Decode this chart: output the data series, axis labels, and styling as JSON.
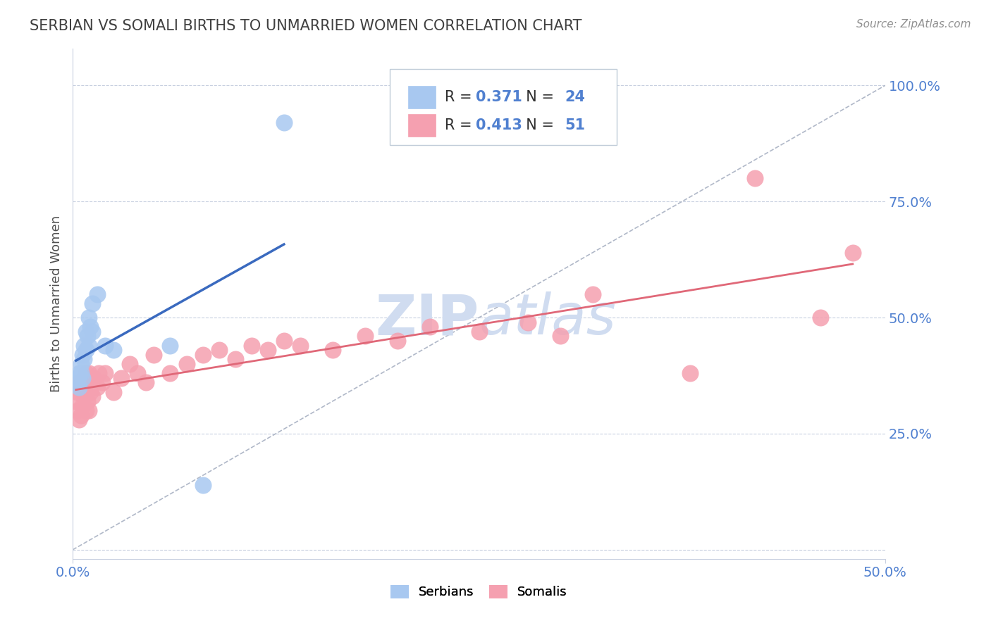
{
  "title": "SERBIAN VS SOMALI BIRTHS TO UNMARRIED WOMEN CORRELATION CHART",
  "source": "Source: ZipAtlas.com",
  "xlim": [
    0.0,
    0.5
  ],
  "ylim": [
    -0.02,
    1.08
  ],
  "ylabel": "Births to Unmarried Women",
  "serbian_color": "#a8c8f0",
  "somali_color": "#f5a0b0",
  "serbian_line_color": "#3a6abf",
  "somali_line_color": "#e06878",
  "ref_line_color": "#b0b8c8",
  "r_serbian": 0.371,
  "n_serbian": 24,
  "r_somali": 0.413,
  "n_somali": 51,
  "background_color": "#ffffff",
  "grid_color": "#c8d0e0",
  "title_color": "#404040",
  "source_color": "#909090",
  "watermark_color": "#d0dcf0",
  "accent_color": "#5080d0",
  "serbian_x": [
    0.002,
    0.003,
    0.004,
    0.004,
    0.005,
    0.005,
    0.006,
    0.006,
    0.007,
    0.007,
    0.008,
    0.008,
    0.009,
    0.01,
    0.01,
    0.011,
    0.012,
    0.012,
    0.015,
    0.02,
    0.025,
    0.06,
    0.08,
    0.13
  ],
  "serbian_y": [
    0.36,
    0.37,
    0.35,
    0.38,
    0.38,
    0.4,
    0.37,
    0.42,
    0.41,
    0.44,
    0.43,
    0.47,
    0.46,
    0.44,
    0.5,
    0.48,
    0.47,
    0.53,
    0.55,
    0.44,
    0.43,
    0.44,
    0.14,
    0.92
  ],
  "somali_x": [
    0.002,
    0.003,
    0.003,
    0.004,
    0.004,
    0.005,
    0.005,
    0.006,
    0.006,
    0.007,
    0.007,
    0.008,
    0.008,
    0.009,
    0.009,
    0.01,
    0.01,
    0.011,
    0.012,
    0.013,
    0.015,
    0.016,
    0.018,
    0.02,
    0.025,
    0.03,
    0.035,
    0.04,
    0.045,
    0.05,
    0.06,
    0.07,
    0.08,
    0.09,
    0.1,
    0.11,
    0.12,
    0.13,
    0.14,
    0.16,
    0.18,
    0.2,
    0.22,
    0.25,
    0.28,
    0.3,
    0.32,
    0.38,
    0.42,
    0.46,
    0.48
  ],
  "somali_y": [
    0.32,
    0.3,
    0.34,
    0.28,
    0.36,
    0.29,
    0.35,
    0.31,
    0.36,
    0.33,
    0.37,
    0.3,
    0.38,
    0.32,
    0.36,
    0.3,
    0.38,
    0.34,
    0.33,
    0.37,
    0.35,
    0.38,
    0.36,
    0.38,
    0.34,
    0.37,
    0.4,
    0.38,
    0.36,
    0.42,
    0.38,
    0.4,
    0.42,
    0.43,
    0.41,
    0.44,
    0.43,
    0.45,
    0.44,
    0.43,
    0.46,
    0.45,
    0.48,
    0.47,
    0.49,
    0.46,
    0.55,
    0.38,
    0.8,
    0.5,
    0.64
  ]
}
